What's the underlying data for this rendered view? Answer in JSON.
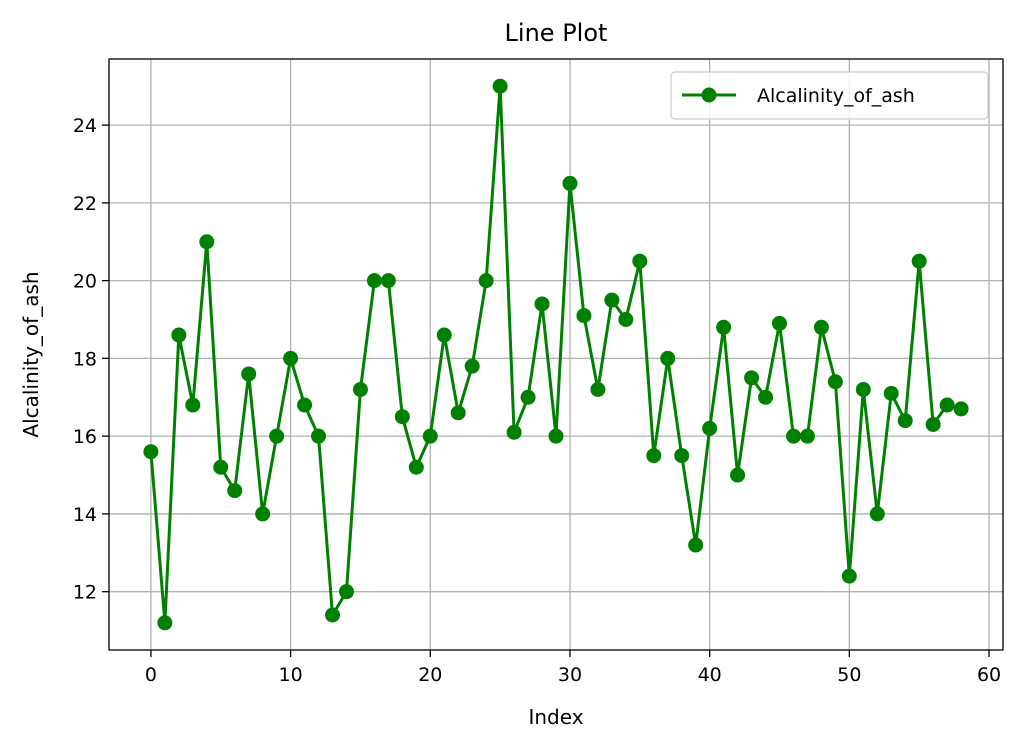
{
  "chart_data": {
    "type": "line",
    "title": "Line Plot",
    "xlabel": "Index",
    "ylabel": "Alcalinity_of_ash",
    "xlim": [
      -3,
      61
    ],
    "ylim": [
      10.5,
      25.7
    ],
    "xticks": [
      0,
      10,
      20,
      30,
      40,
      50,
      60
    ],
    "yticks": [
      12,
      14,
      16,
      18,
      20,
      22,
      24
    ],
    "grid": true,
    "legend_position": "top-right",
    "series": [
      {
        "name": "Alcalinity_of_ash",
        "color": "#008000",
        "marker": "circle",
        "x": [
          0,
          1,
          2,
          3,
          4,
          5,
          6,
          7,
          8,
          9,
          10,
          11,
          12,
          13,
          14,
          15,
          16,
          17,
          18,
          19,
          20,
          21,
          22,
          23,
          24,
          25,
          26,
          27,
          28,
          29,
          30,
          31,
          32,
          33,
          34,
          35,
          36,
          37,
          38,
          39,
          40,
          41,
          42,
          43,
          44,
          45,
          46,
          47,
          48,
          49,
          50,
          51,
          52,
          53,
          54,
          55,
          56,
          57,
          58
        ],
        "y": [
          15.6,
          11.2,
          18.6,
          16.8,
          21.0,
          15.2,
          14.6,
          17.6,
          14.0,
          16.0,
          18.0,
          16.8,
          16.0,
          11.4,
          12.0,
          17.2,
          20.0,
          20.0,
          16.5,
          15.2,
          16.0,
          18.6,
          16.6,
          17.8,
          20.0,
          25.0,
          16.1,
          17.0,
          19.4,
          16.0,
          22.5,
          19.1,
          17.2,
          19.5,
          19.0,
          20.5,
          15.5,
          18.0,
          15.5,
          13.2,
          16.2,
          18.8,
          15.0,
          17.5,
          17.0,
          18.9,
          16.0,
          16.0,
          18.8,
          17.4,
          12.4,
          17.2,
          14.0,
          17.1,
          16.4,
          20.5,
          16.3,
          16.8,
          16.7
        ]
      }
    ]
  }
}
